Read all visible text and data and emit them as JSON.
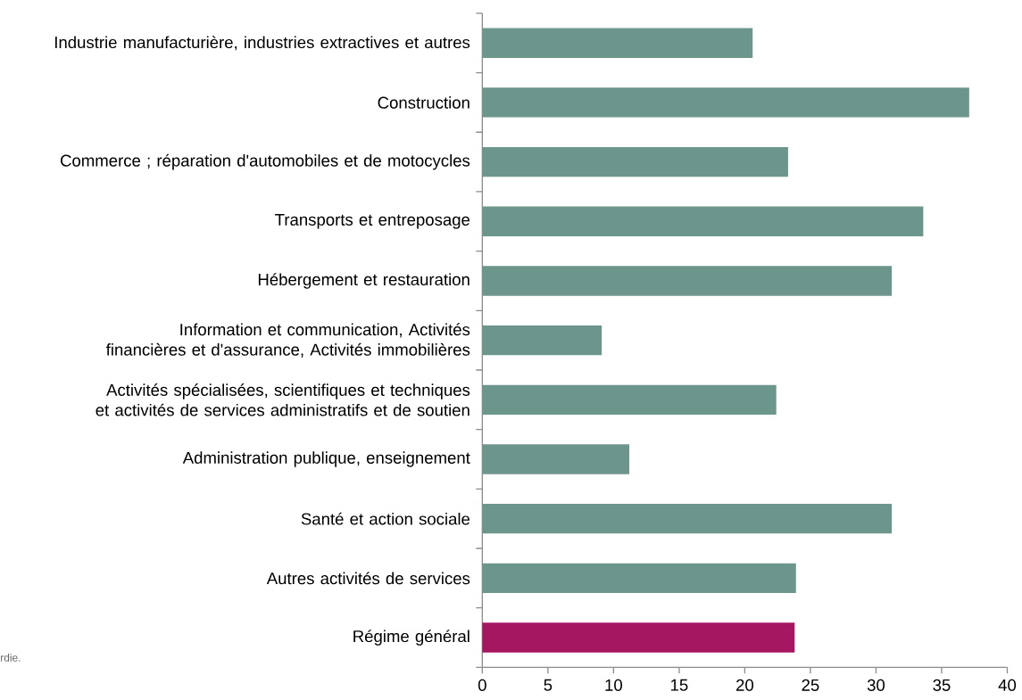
{
  "chart_data": {
    "type": "bar",
    "orientation": "horizontal",
    "categories": [
      "Industrie manufacturière, industries extractives et autres",
      "Construction",
      "Commerce ; réparation d'automobiles et de motocycles",
      "Transports et entreposage",
      "Hébergement et restauration",
      "Information et communication, Activités financières et d'assurance, Activités immobilières",
      "Activités spécialisées, scientifiques et techniques et activités de services administratifs et de soutien",
      "Administration publique, enseignement",
      "Santé et action sociale",
      "Autres activités de services",
      "Régime général"
    ],
    "values": [
      20.6,
      37.1,
      23.3,
      33.6,
      31.2,
      9.1,
      22.4,
      11.2,
      31.2,
      23.9,
      23.8
    ],
    "colors": [
      "#6c958b",
      "#6c958b",
      "#6c958b",
      "#6c958b",
      "#6c958b",
      "#6c958b",
      "#6c958b",
      "#6c958b",
      "#6c958b",
      "#6c958b",
      "#a51761"
    ],
    "xlim": [
      0,
      40
    ],
    "xticks": [
      0,
      5,
      10,
      15,
      20,
      25,
      30,
      35,
      40
    ],
    "annotations": [
      "rdie."
    ]
  }
}
